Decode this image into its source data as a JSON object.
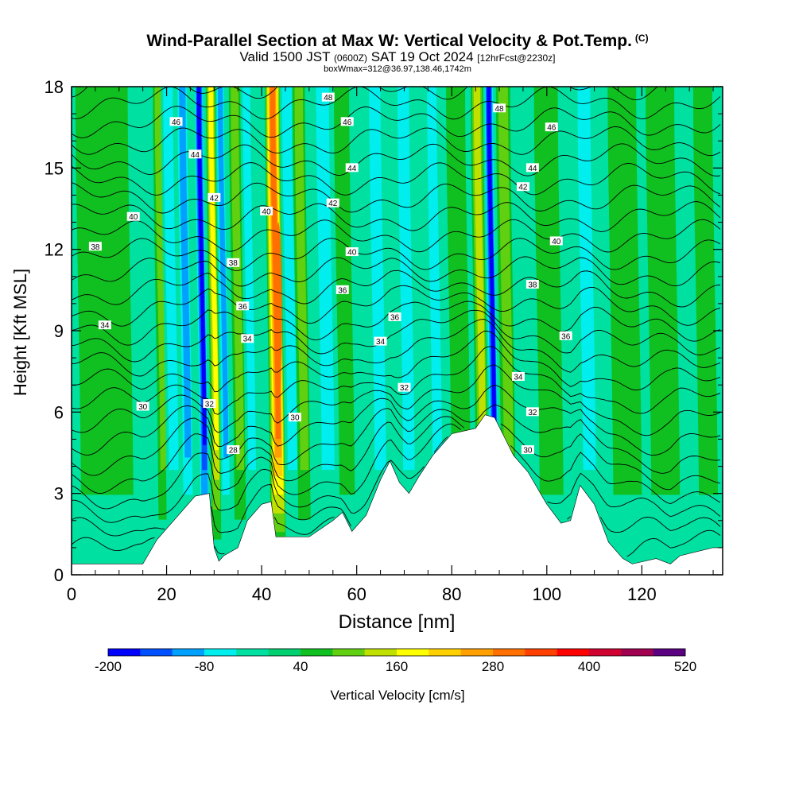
{
  "header": {
    "title": "Wind-Parallel Section at Max W: Vertical Velocity & Pot.Temp.",
    "title_mark": "(C)",
    "valid_prefix": "Valid 1500 JST",
    "valid_utc": "(0600Z)",
    "valid_date": "SAT 19 Oct 2024",
    "forecast_info": "[12hrFcst@2230z]",
    "box_info": "boxWmax=312@36.97,138.46,1742m"
  },
  "chart_data": {
    "type": "heatmap",
    "title": "Wind-Parallel Section at Max W: Vertical Velocity & Pot.Temp.",
    "xlabel": "Distance [nm]",
    "ylabel": "Height [Kft MSL]",
    "xlim": [
      0,
      137
    ],
    "ylim": [
      0,
      18
    ],
    "x_ticks": [
      0,
      20,
      40,
      60,
      80,
      100,
      120
    ],
    "y_ticks": [
      0,
      3,
      6,
      9,
      12,
      15,
      18
    ],
    "grid": false,
    "colorbar": {
      "label": "Vertical Velocity [cm/s]",
      "min": -200,
      "max": 520,
      "step": 40,
      "tick_labels": [
        "-200",
        "-80",
        "40",
        "160",
        "280",
        "400",
        "520"
      ],
      "tick_values": [
        -200,
        -80,
        40,
        160,
        280,
        400,
        520
      ],
      "colors": [
        "#0000ff",
        "#0050ff",
        "#00a0ff",
        "#00eeee",
        "#00e0a0",
        "#00d070",
        "#10c020",
        "#60d010",
        "#c0e000",
        "#ffff00",
        "#ffd000",
        "#ffa000",
        "#ff7000",
        "#ff4000",
        "#ff0000",
        "#d00030",
        "#a00050",
        "#5a0080"
      ]
    },
    "vertical_velocity_features": [
      {
        "x": 5,
        "w": 3,
        "val": 60
      },
      {
        "x": 10,
        "w": 3,
        "val": 60
      },
      {
        "x": 18,
        "w": 1.2,
        "val": -30
      },
      {
        "x": 19.5,
        "w": 1.2,
        "val": 80
      },
      {
        "x": 21.5,
        "w": 1.5,
        "val": -80
      },
      {
        "x": 24.5,
        "w": 1.3,
        "val": -120
      },
      {
        "x": 28,
        "w": 1.0,
        "val": -200
      },
      {
        "x": 30.5,
        "w": 1.0,
        "val": 170
      },
      {
        "x": 32.5,
        "w": 1.0,
        "val": -90
      },
      {
        "x": 35.5,
        "w": 1.2,
        "val": 80
      },
      {
        "x": 38,
        "w": 1.2,
        "val": -60
      },
      {
        "x": 43.5,
        "w": 1.6,
        "val": 312
      },
      {
        "x": 46.5,
        "w": 1.5,
        "val": -80
      },
      {
        "x": 49,
        "w": 1.3,
        "val": 110
      },
      {
        "x": 54,
        "w": 2.0,
        "val": -50
      },
      {
        "x": 58,
        "w": 1.6,
        "val": 70
      },
      {
        "x": 65,
        "w": 1.8,
        "val": -50
      },
      {
        "x": 71,
        "w": 1.8,
        "val": -50
      },
      {
        "x": 77,
        "w": 1.5,
        "val": -50
      },
      {
        "x": 82,
        "w": 2.0,
        "val": 70
      },
      {
        "x": 86.5,
        "w": 1.3,
        "val": 120
      },
      {
        "x": 89,
        "w": 1.0,
        "val": -200
      },
      {
        "x": 92,
        "w": 1.5,
        "val": 90
      },
      {
        "x": 101,
        "w": 2.5,
        "val": 60
      },
      {
        "x": 109,
        "w": 2.0,
        "val": -50
      },
      {
        "x": 117,
        "w": 3.0,
        "val": 70
      },
      {
        "x": 125,
        "w": 3.0,
        "val": 60
      },
      {
        "x": 134,
        "w": 2.0,
        "val": 70
      }
    ],
    "terrain_kft": [
      [
        0,
        0.4
      ],
      [
        15,
        0.4
      ],
      [
        16,
        0.7
      ],
      [
        18,
        1.3
      ],
      [
        23,
        2.3
      ],
      [
        26,
        2.9
      ],
      [
        29,
        3.0
      ],
      [
        30,
        1.0
      ],
      [
        31,
        0.5
      ],
      [
        32,
        0.7
      ],
      [
        35,
        1.0
      ],
      [
        37,
        2.0
      ],
      [
        40,
        2.6
      ],
      [
        42,
        2.7
      ],
      [
        43,
        1.4
      ],
      [
        50,
        1.4
      ],
      [
        55,
        2.0
      ],
      [
        57,
        2.3
      ],
      [
        59,
        1.6
      ],
      [
        62,
        2.2
      ],
      [
        65,
        3.5
      ],
      [
        67,
        4.2
      ],
      [
        69,
        3.4
      ],
      [
        71,
        3.0
      ],
      [
        73,
        3.6
      ],
      [
        76,
        4.4
      ],
      [
        80,
        5.2
      ],
      [
        85,
        5.4
      ],
      [
        87,
        5.9
      ],
      [
        89,
        5.8
      ],
      [
        93,
        4.4
      ],
      [
        96,
        3.8
      ],
      [
        100,
        2.6
      ],
      [
        103,
        1.9
      ],
      [
        105,
        2.0
      ],
      [
        107,
        3.3
      ],
      [
        110,
        2.6
      ],
      [
        113,
        1.2
      ],
      [
        116,
        0.6
      ],
      [
        118,
        0.4
      ],
      [
        123,
        0.6
      ],
      [
        126,
        0.4
      ],
      [
        128,
        0.7
      ],
      [
        135,
        1.0
      ],
      [
        137,
        1.0
      ]
    ],
    "theta_contour_labels": [
      {
        "v": "48",
        "x": 54,
        "y": 17.6
      },
      {
        "v": "46",
        "x": 22,
        "y": 16.7
      },
      {
        "v": "46",
        "x": 58,
        "y": 16.7
      },
      {
        "v": "44",
        "x": 26,
        "y": 15.5
      },
      {
        "v": "44",
        "x": 59,
        "y": 15.0
      },
      {
        "v": "42",
        "x": 30,
        "y": 13.9
      },
      {
        "v": "42",
        "x": 55,
        "y": 13.7
      },
      {
        "v": "40",
        "x": 13,
        "y": 13.2
      },
      {
        "v": "40",
        "x": 41,
        "y": 13.4
      },
      {
        "v": "40",
        "x": 59,
        "y": 11.9
      },
      {
        "v": "38",
        "x": 5,
        "y": 12.1
      },
      {
        "v": "38",
        "x": 34,
        "y": 11.5
      },
      {
        "v": "36",
        "x": 36,
        "y": 9.9
      },
      {
        "v": "36",
        "x": 57,
        "y": 10.5
      },
      {
        "v": "34",
        "x": 7,
        "y": 9.2
      },
      {
        "v": "34",
        "x": 37,
        "y": 8.7
      },
      {
        "v": "36",
        "x": 68,
        "y": 9.5
      },
      {
        "v": "34",
        "x": 65,
        "y": 8.6
      },
      {
        "v": "32",
        "x": 70,
        "y": 6.9
      },
      {
        "v": "30",
        "x": 15,
        "y": 6.2
      },
      {
        "v": "32",
        "x": 29,
        "y": 6.3
      },
      {
        "v": "30",
        "x": 47,
        "y": 5.8
      },
      {
        "v": "28",
        "x": 34,
        "y": 4.6
      },
      {
        "v": "48",
        "x": 90,
        "y": 17.2
      },
      {
        "v": "46",
        "x": 101,
        "y": 16.5
      },
      {
        "v": "44",
        "x": 97,
        "y": 15.0
      },
      {
        "v": "42",
        "x": 95,
        "y": 14.3
      },
      {
        "v": "40",
        "x": 102,
        "y": 12.3
      },
      {
        "v": "38",
        "x": 97,
        "y": 10.7
      },
      {
        "v": "36",
        "x": 104,
        "y": 8.8
      },
      {
        "v": "34",
        "x": 94,
        "y": 7.3
      },
      {
        "v": "32",
        "x": 97,
        "y": 6.0
      },
      {
        "v": "30",
        "x": 96,
        "y": 4.6
      }
    ]
  }
}
